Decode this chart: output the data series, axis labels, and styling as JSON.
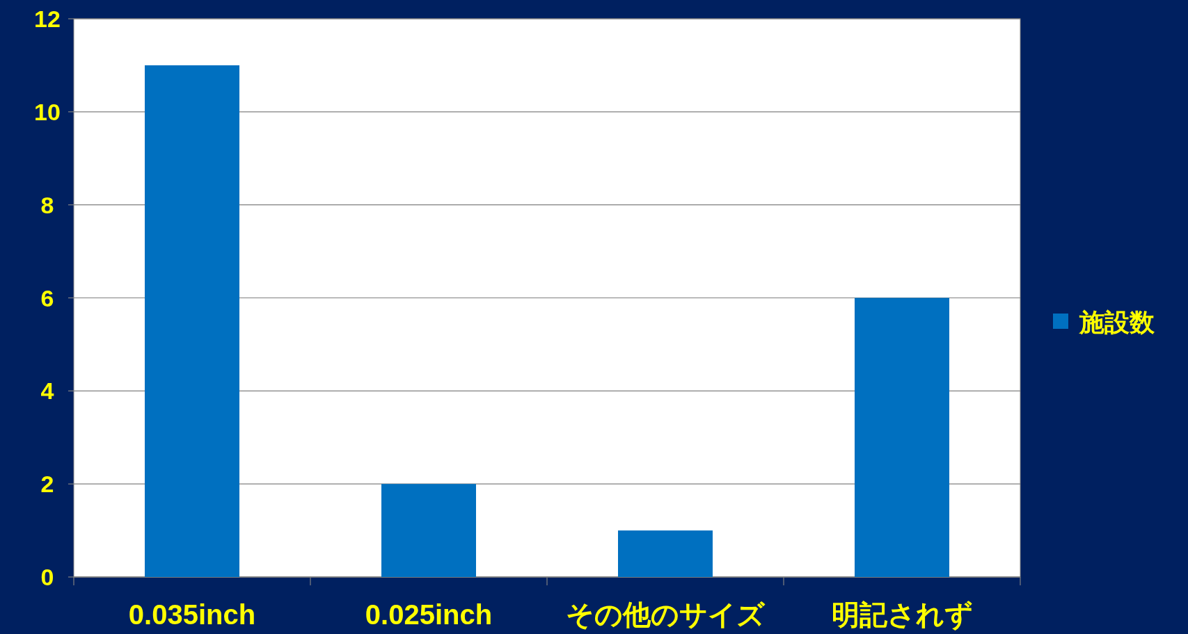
{
  "chart_data": {
    "type": "bar",
    "categories": [
      "0.035inch",
      "0.025inch",
      "その他のサイズ",
      "明記されず"
    ],
    "series": [
      {
        "name": "施設数",
        "color": "#0070c0",
        "values": [
          11,
          2,
          1,
          6
        ]
      }
    ],
    "ylim": [
      0,
      12
    ],
    "yticks": [
      0,
      2,
      4,
      6,
      8,
      10,
      12
    ],
    "grid": "y",
    "legend": "right"
  }
}
